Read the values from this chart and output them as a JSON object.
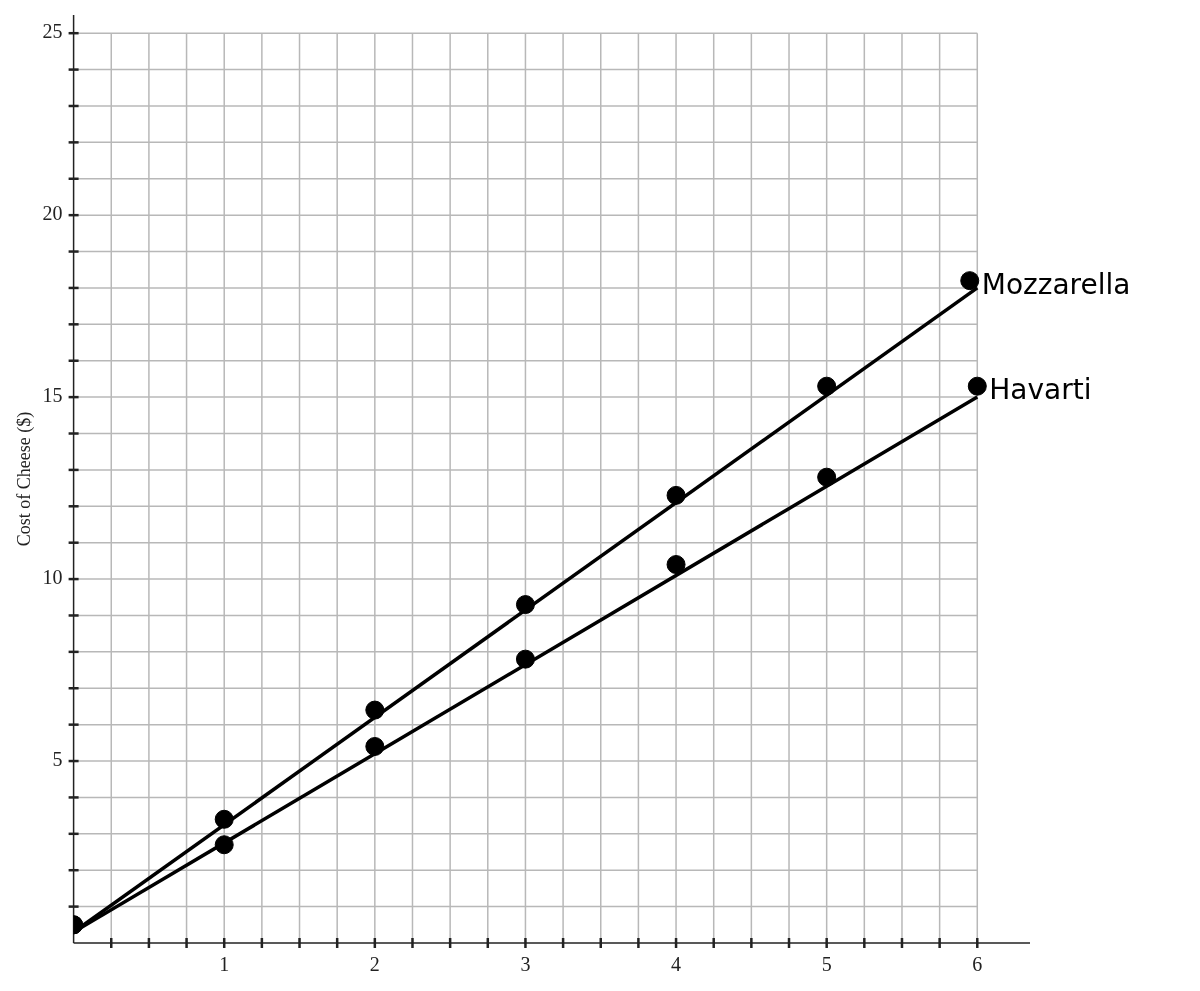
{
  "chart_data": {
    "type": "scatter",
    "ylabel": "Cost of Cheese ($)",
    "xlim": [
      0,
      6.35
    ],
    "ylim": [
      0,
      25.5
    ],
    "xticks": [
      {
        "value": 0.25,
        "label": null
      },
      {
        "value": 0.5,
        "label": null
      },
      {
        "value": 0.75,
        "label": null
      },
      1,
      {
        "value": 1.25,
        "label": null
      },
      {
        "value": 1.5,
        "label": null
      },
      {
        "value": 1.75,
        "label": null
      },
      2,
      {
        "value": 2.25,
        "label": null
      },
      {
        "value": 2.5,
        "label": null
      },
      {
        "value": 2.75,
        "label": null
      },
      3,
      {
        "value": 3.25,
        "label": null
      },
      {
        "value": 3.5,
        "label": null
      },
      {
        "value": 3.75,
        "label": null
      },
      4,
      {
        "value": 4.25,
        "label": null
      },
      {
        "value": 4.5,
        "label": null
      },
      {
        "value": 4.75,
        "label": null
      },
      5,
      {
        "value": 5.25,
        "label": null
      },
      {
        "value": 5.5,
        "label": null
      },
      {
        "value": 5.75,
        "label": null
      },
      6
    ],
    "yticks": [
      {
        "value": 1,
        "label": null
      },
      {
        "value": 2,
        "label": null
      },
      {
        "value": 3,
        "label": null
      },
      {
        "value": 4,
        "label": null
      },
      5,
      {
        "value": 6,
        "label": null
      },
      {
        "value": 7,
        "label": null
      },
      {
        "value": 8,
        "label": null
      },
      {
        "value": 9,
        "label": null
      },
      10,
      {
        "value": 11,
        "label": null
      },
      {
        "value": 12,
        "label": null
      },
      {
        "value": 13,
        "label": null
      },
      {
        "value": 14,
        "label": null
      },
      15,
      {
        "value": 16,
        "label": null
      },
      {
        "value": 17,
        "label": null
      },
      {
        "value": 18,
        "label": null
      },
      {
        "value": 19,
        "label": null
      },
      20,
      {
        "value": 21,
        "label": null
      },
      {
        "value": 22,
        "label": null
      },
      {
        "value": 23,
        "label": null
      },
      {
        "value": 24,
        "label": null
      },
      25
    ],
    "grid": true,
    "series": [
      {
        "name": "Mozzarella",
        "color": "#000000",
        "marker": "circle",
        "x": [
          0,
          1,
          2,
          3,
          4,
          5,
          5.95
        ],
        "values": [
          0.5,
          3.4,
          6.4,
          9.3,
          12.3,
          15.3,
          18.2
        ]
      },
      {
        "name": "Havarti",
        "color": "#000000",
        "marker": "circle",
        "x": [
          0,
          1,
          2,
          3,
          4,
          5,
          6
        ],
        "values": [
          0.5,
          2.7,
          5.4,
          7.8,
          10.4,
          12.8,
          15.3
        ]
      },
      {
        "type": "line",
        "color": "#000000",
        "marker": "none",
        "x": [
          0,
          6
        ],
        "values": [
          0.3,
          18
        ]
      },
      {
        "type": "line",
        "color": "#000000",
        "marker": "none",
        "x": [
          0,
          6
        ],
        "values": [
          0.3,
          15
        ]
      }
    ]
  }
}
